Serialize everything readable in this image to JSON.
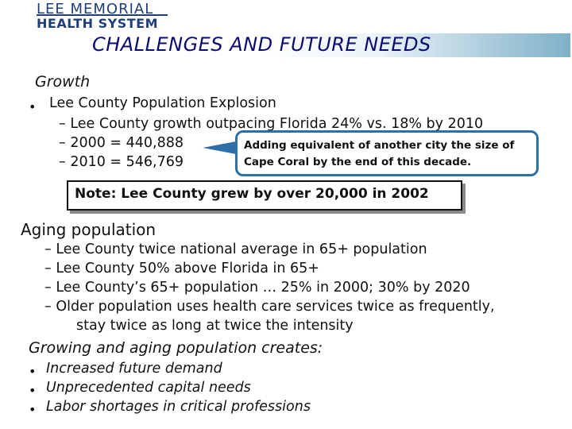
{
  "logo": {
    "line1": "LEE MEMORIAL",
    "line2": "HEALTH SYSTEM"
  },
  "title": "CHALLENGES AND FUTURE NEEDS",
  "growth": {
    "heading": "Growth",
    "bullet": "•",
    "item": "Lee County Population Explosion",
    "subitems": [
      "– Lee County growth outpacing Florida 24% vs. 18% by 2010",
      "– 2000 = 440,888",
      "– 2010 = 546,769"
    ]
  },
  "callout": {
    "line1": "Adding equivalent of another city the size of",
    "line2": "Cape Coral by the end of this decade."
  },
  "note": "Note: Lee County grew by over 20,000 in 2002",
  "aging": {
    "heading": "Aging population",
    "items": [
      "–  Lee County twice national average in 65+ population",
      "–  Lee County 50% above Florida in 65+",
      "–  Lee County’s 65+ population … 25% in 2000; 30% by 2020",
      "–  Older population uses health care services twice as frequently,"
    ],
    "continuation": "stay twice as long at twice the intensity"
  },
  "creates": {
    "heading": "Growing and aging population creates:",
    "bullet": "•",
    "items": [
      "Increased future demand",
      "Unprecedented capital needs",
      "Labor shortages in critical professions"
    ]
  },
  "colors": {
    "title": "#0c0c70",
    "logo": "#1f3f7a",
    "callout_border": "#2f6fa8"
  }
}
